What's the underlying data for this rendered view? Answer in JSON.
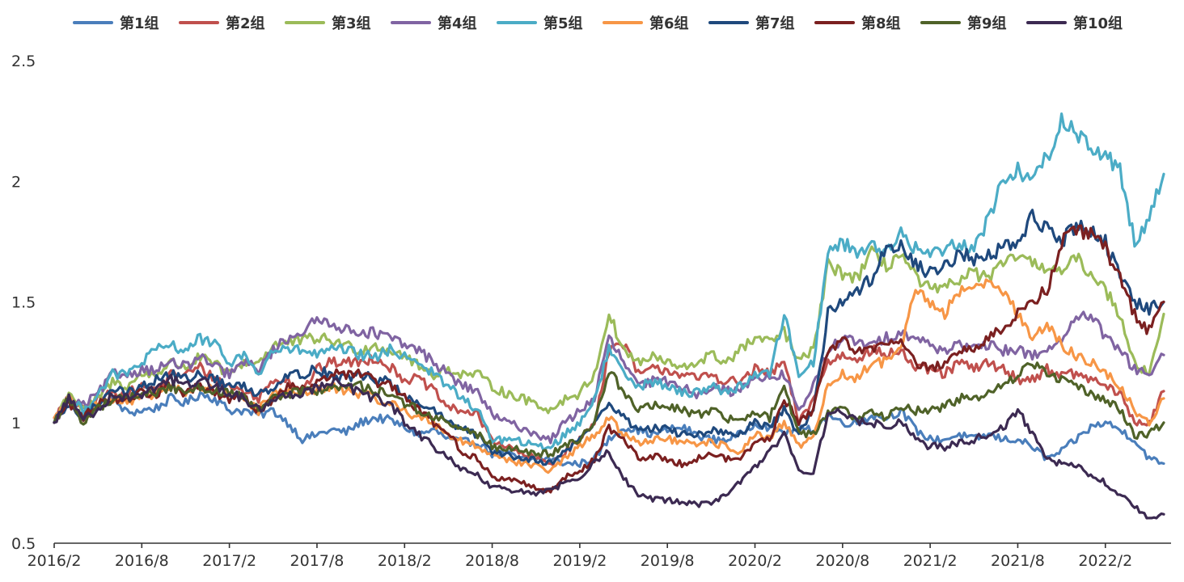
{
  "chart_data": {
    "type": "line",
    "title": "",
    "xlabel": "",
    "ylabel": "",
    "x_tick_labels": [
      "2016/2",
      "2016/8",
      "2017/2",
      "2017/8",
      "2018/2",
      "2018/8",
      "2019/2",
      "2019/8",
      "2020/2",
      "2020/8",
      "2021/2",
      "2021/8",
      "2022/2"
    ],
    "y_tick_labels": [
      "0.5",
      "1",
      "1.5",
      "2",
      "2.5"
    ],
    "y_ticks": [
      0.5,
      1,
      1.5,
      2,
      2.5
    ],
    "ylim": [
      0.5,
      2.5
    ],
    "xlim": [
      0,
      76.5
    ],
    "x_unit_note": "months",
    "legend_position": "top",
    "grid": false,
    "series": [
      {
        "name": "第1组",
        "color": "#4a7ebb",
        "values": [
          1.0,
          1.1,
          1.02,
          1.07,
          1.1,
          1.04,
          1.05,
          1.06,
          1.1,
          1.08,
          1.12,
          1.1,
          1.05,
          1.05,
          1.03,
          1.05,
          1.0,
          0.93,
          0.95,
          0.97,
          0.96,
          1.0,
          1.02,
          1.01,
          0.98,
          0.95,
          0.97,
          0.93,
          0.92,
          0.92,
          0.87,
          0.87,
          0.85,
          0.85,
          0.85,
          0.83,
          0.83,
          0.85,
          0.93,
          0.98,
          0.97,
          0.95,
          0.97,
          0.98,
          0.95,
          0.93,
          0.93,
          0.95,
          1.0,
          0.98,
          0.96,
          0.97,
          0.97,
          1.03,
          1.0,
          1.0,
          1.03,
          1.02,
          1.05,
          0.97,
          0.93,
          0.93,
          0.95,
          0.93,
          0.95,
          0.93,
          0.93,
          0.9,
          0.85,
          0.88,
          0.93,
          0.98,
          1.0,
          0.97,
          0.93,
          0.85,
          0.83
        ]
      },
      {
        "name": "第2组",
        "color": "#c0504d",
        "values": [
          1.02,
          1.1,
          1.05,
          1.1,
          1.12,
          1.12,
          1.15,
          1.13,
          1.2,
          1.2,
          1.23,
          1.18,
          1.15,
          1.13,
          1.1,
          1.18,
          1.18,
          1.13,
          1.22,
          1.25,
          1.25,
          1.25,
          1.27,
          1.23,
          1.18,
          1.18,
          1.13,
          1.06,
          1.05,
          1.03,
          0.93,
          0.9,
          0.87,
          0.85,
          0.83,
          0.88,
          0.93,
          1.0,
          1.3,
          1.33,
          1.2,
          1.22,
          1.22,
          1.2,
          1.18,
          1.2,
          1.17,
          1.17,
          1.22,
          1.2,
          1.25,
          1.0,
          1.1,
          1.25,
          1.28,
          1.27,
          1.3,
          1.28,
          1.3,
          1.22,
          1.22,
          1.2,
          1.25,
          1.22,
          1.25,
          1.22,
          1.18,
          1.18,
          1.22,
          1.2,
          1.2,
          1.18,
          1.15,
          1.12,
          1.0,
          1.0,
          1.13
        ]
      },
      {
        "name": "第3组",
        "color": "#9bbb59",
        "values": [
          1.0,
          1.13,
          1.05,
          1.1,
          1.17,
          1.15,
          1.2,
          1.2,
          1.25,
          1.23,
          1.27,
          1.24,
          1.2,
          1.25,
          1.25,
          1.32,
          1.33,
          1.34,
          1.35,
          1.34,
          1.32,
          1.3,
          1.32,
          1.3,
          1.28,
          1.23,
          1.2,
          1.22,
          1.2,
          1.2,
          1.15,
          1.12,
          1.1,
          1.08,
          1.05,
          1.1,
          1.12,
          1.2,
          1.45,
          1.3,
          1.25,
          1.27,
          1.25,
          1.22,
          1.25,
          1.28,
          1.25,
          1.3,
          1.35,
          1.33,
          1.38,
          1.25,
          1.3,
          1.65,
          1.62,
          1.6,
          1.7,
          1.65,
          1.7,
          1.6,
          1.55,
          1.55,
          1.6,
          1.62,
          1.6,
          1.65,
          1.7,
          1.65,
          1.65,
          1.62,
          1.68,
          1.62,
          1.55,
          1.45,
          1.25,
          1.2,
          1.45
        ]
      },
      {
        "name": "第4组",
        "color": "#8064a2",
        "values": [
          1.0,
          1.1,
          1.07,
          1.12,
          1.2,
          1.2,
          1.22,
          1.22,
          1.25,
          1.23,
          1.27,
          1.23,
          1.2,
          1.25,
          1.22,
          1.3,
          1.35,
          1.38,
          1.42,
          1.42,
          1.38,
          1.38,
          1.37,
          1.35,
          1.32,
          1.3,
          1.25,
          1.2,
          1.15,
          1.13,
          1.03,
          1.0,
          0.98,
          0.95,
          0.93,
          1.0,
          1.05,
          1.1,
          1.35,
          1.25,
          1.15,
          1.17,
          1.17,
          1.15,
          1.12,
          1.15,
          1.13,
          1.13,
          1.2,
          1.18,
          1.2,
          1.05,
          1.15,
          1.3,
          1.35,
          1.33,
          1.32,
          1.35,
          1.38,
          1.35,
          1.32,
          1.3,
          1.33,
          1.3,
          1.32,
          1.3,
          1.3,
          1.28,
          1.3,
          1.35,
          1.42,
          1.45,
          1.35,
          1.3,
          1.22,
          1.2,
          1.28
        ]
      },
      {
        "name": "第5组",
        "color": "#4bacc6",
        "values": [
          1.0,
          1.1,
          1.05,
          1.12,
          1.2,
          1.2,
          1.25,
          1.3,
          1.32,
          1.3,
          1.35,
          1.32,
          1.25,
          1.28,
          1.2,
          1.3,
          1.3,
          1.3,
          1.28,
          1.3,
          1.3,
          1.28,
          1.27,
          1.3,
          1.28,
          1.25,
          1.2,
          1.15,
          1.1,
          1.05,
          0.93,
          0.93,
          0.92,
          0.9,
          0.9,
          0.95,
          1.0,
          1.1,
          1.3,
          1.22,
          1.15,
          1.17,
          1.15,
          1.12,
          1.13,
          1.15,
          1.13,
          1.15,
          1.2,
          1.2,
          1.45,
          1.2,
          1.25,
          1.7,
          1.75,
          1.7,
          1.75,
          1.7,
          1.78,
          1.72,
          1.7,
          1.72,
          1.75,
          1.72,
          1.85,
          2.0,
          2.05,
          2.0,
          2.1,
          2.25,
          2.2,
          2.15,
          2.1,
          2.05,
          1.75,
          1.85,
          2.03
        ]
      },
      {
        "name": "第6组",
        "color": "#f79646",
        "values": [
          1.02,
          1.1,
          1.02,
          1.08,
          1.1,
          1.08,
          1.1,
          1.12,
          1.15,
          1.12,
          1.15,
          1.13,
          1.12,
          1.1,
          1.05,
          1.12,
          1.13,
          1.12,
          1.13,
          1.15,
          1.13,
          1.12,
          1.1,
          1.08,
          1.05,
          1.02,
          1.0,
          0.95,
          0.92,
          0.9,
          0.87,
          0.85,
          0.83,
          0.82,
          0.8,
          0.85,
          0.9,
          0.95,
          1.02,
          0.95,
          0.92,
          0.93,
          0.93,
          0.92,
          0.9,
          0.92,
          0.9,
          0.88,
          0.95,
          0.93,
          1.0,
          0.9,
          0.95,
          1.15,
          1.2,
          1.18,
          1.25,
          1.25,
          1.3,
          1.55,
          1.5,
          1.45,
          1.55,
          1.55,
          1.6,
          1.55,
          1.45,
          1.35,
          1.4,
          1.32,
          1.28,
          1.25,
          1.2,
          1.15,
          1.05,
          1.0,
          1.1
        ]
      },
      {
        "name": "第7组",
        "color": "#1f497d",
        "values": [
          1.0,
          1.07,
          1.02,
          1.08,
          1.15,
          1.12,
          1.15,
          1.18,
          1.2,
          1.18,
          1.2,
          1.18,
          1.15,
          1.15,
          1.12,
          1.15,
          1.2,
          1.2,
          1.22,
          1.2,
          1.18,
          1.2,
          1.18,
          1.17,
          1.1,
          1.08,
          1.05,
          1.0,
          0.97,
          0.95,
          0.88,
          0.87,
          0.85,
          0.85,
          0.83,
          0.88,
          0.93,
          1.0,
          1.08,
          1.02,
          0.97,
          0.98,
          0.97,
          0.95,
          0.95,
          0.97,
          0.95,
          0.95,
          1.0,
          0.98,
          1.05,
          0.95,
          1.05,
          1.45,
          1.5,
          1.55,
          1.6,
          1.72,
          1.75,
          1.65,
          1.62,
          1.65,
          1.7,
          1.68,
          1.7,
          1.72,
          1.75,
          1.85,
          1.8,
          1.75,
          1.82,
          1.8,
          1.75,
          1.6,
          1.5,
          1.47,
          1.5
        ]
      },
      {
        "name": "第8组",
        "color": "#7b2020",
        "values": [
          1.0,
          1.08,
          1.02,
          1.08,
          1.1,
          1.1,
          1.12,
          1.12,
          1.15,
          1.12,
          1.15,
          1.12,
          1.1,
          1.1,
          1.05,
          1.1,
          1.15,
          1.15,
          1.17,
          1.2,
          1.2,
          1.2,
          1.17,
          1.15,
          1.1,
          1.05,
          1.0,
          0.95,
          0.88,
          0.85,
          0.77,
          0.77,
          0.75,
          0.73,
          0.72,
          0.77,
          0.8,
          0.85,
          0.98,
          0.93,
          0.85,
          0.86,
          0.85,
          0.83,
          0.85,
          0.87,
          0.85,
          0.85,
          0.92,
          0.93,
          1.1,
          1.0,
          1.05,
          1.3,
          1.35,
          1.3,
          1.3,
          1.32,
          1.35,
          1.25,
          1.22,
          1.25,
          1.3,
          1.3,
          1.35,
          1.4,
          1.45,
          1.5,
          1.55,
          1.75,
          1.8,
          1.78,
          1.72,
          1.6,
          1.45,
          1.38,
          1.5
        ]
      },
      {
        "name": "第9组",
        "color": "#4f6228",
        "values": [
          1.0,
          1.1,
          1.0,
          1.06,
          1.1,
          1.1,
          1.12,
          1.12,
          1.15,
          1.13,
          1.15,
          1.13,
          1.12,
          1.1,
          1.05,
          1.1,
          1.12,
          1.13,
          1.13,
          1.15,
          1.15,
          1.15,
          1.13,
          1.12,
          1.08,
          1.05,
          1.02,
          1.0,
          0.97,
          0.95,
          0.9,
          0.9,
          0.88,
          0.87,
          0.87,
          0.9,
          0.93,
          1.0,
          1.22,
          1.13,
          1.05,
          1.07,
          1.07,
          1.05,
          1.03,
          1.05,
          1.02,
          1.0,
          1.05,
          1.02,
          1.15,
          0.95,
          0.95,
          1.05,
          1.05,
          1.02,
          1.05,
          1.02,
          1.07,
          1.05,
          1.05,
          1.07,
          1.1,
          1.1,
          1.12,
          1.15,
          1.2,
          1.25,
          1.2,
          1.18,
          1.15,
          1.12,
          1.1,
          1.05,
          0.95,
          0.95,
          1.0
        ]
      },
      {
        "name": "第10组",
        "color": "#3c2a52",
        "values": [
          1.0,
          1.1,
          1.02,
          1.05,
          1.12,
          1.1,
          1.12,
          1.15,
          1.18,
          1.15,
          1.18,
          1.15,
          1.12,
          1.1,
          1.05,
          1.1,
          1.12,
          1.12,
          1.15,
          1.17,
          1.15,
          1.12,
          1.1,
          1.08,
          1.0,
          0.95,
          0.9,
          0.85,
          0.8,
          0.78,
          0.73,
          0.72,
          0.72,
          0.7,
          0.72,
          0.75,
          0.78,
          0.83,
          0.88,
          0.77,
          0.7,
          0.68,
          0.68,
          0.67,
          0.66,
          0.67,
          0.7,
          0.75,
          0.82,
          0.88,
          0.95,
          0.8,
          0.8,
          1.03,
          1.05,
          1.0,
          1.0,
          0.98,
          1.02,
          0.93,
          0.9,
          0.9,
          0.92,
          0.93,
          0.95,
          0.98,
          1.05,
          0.95,
          0.85,
          0.83,
          0.82,
          0.78,
          0.75,
          0.7,
          0.65,
          0.6,
          0.62
        ]
      }
    ]
  }
}
